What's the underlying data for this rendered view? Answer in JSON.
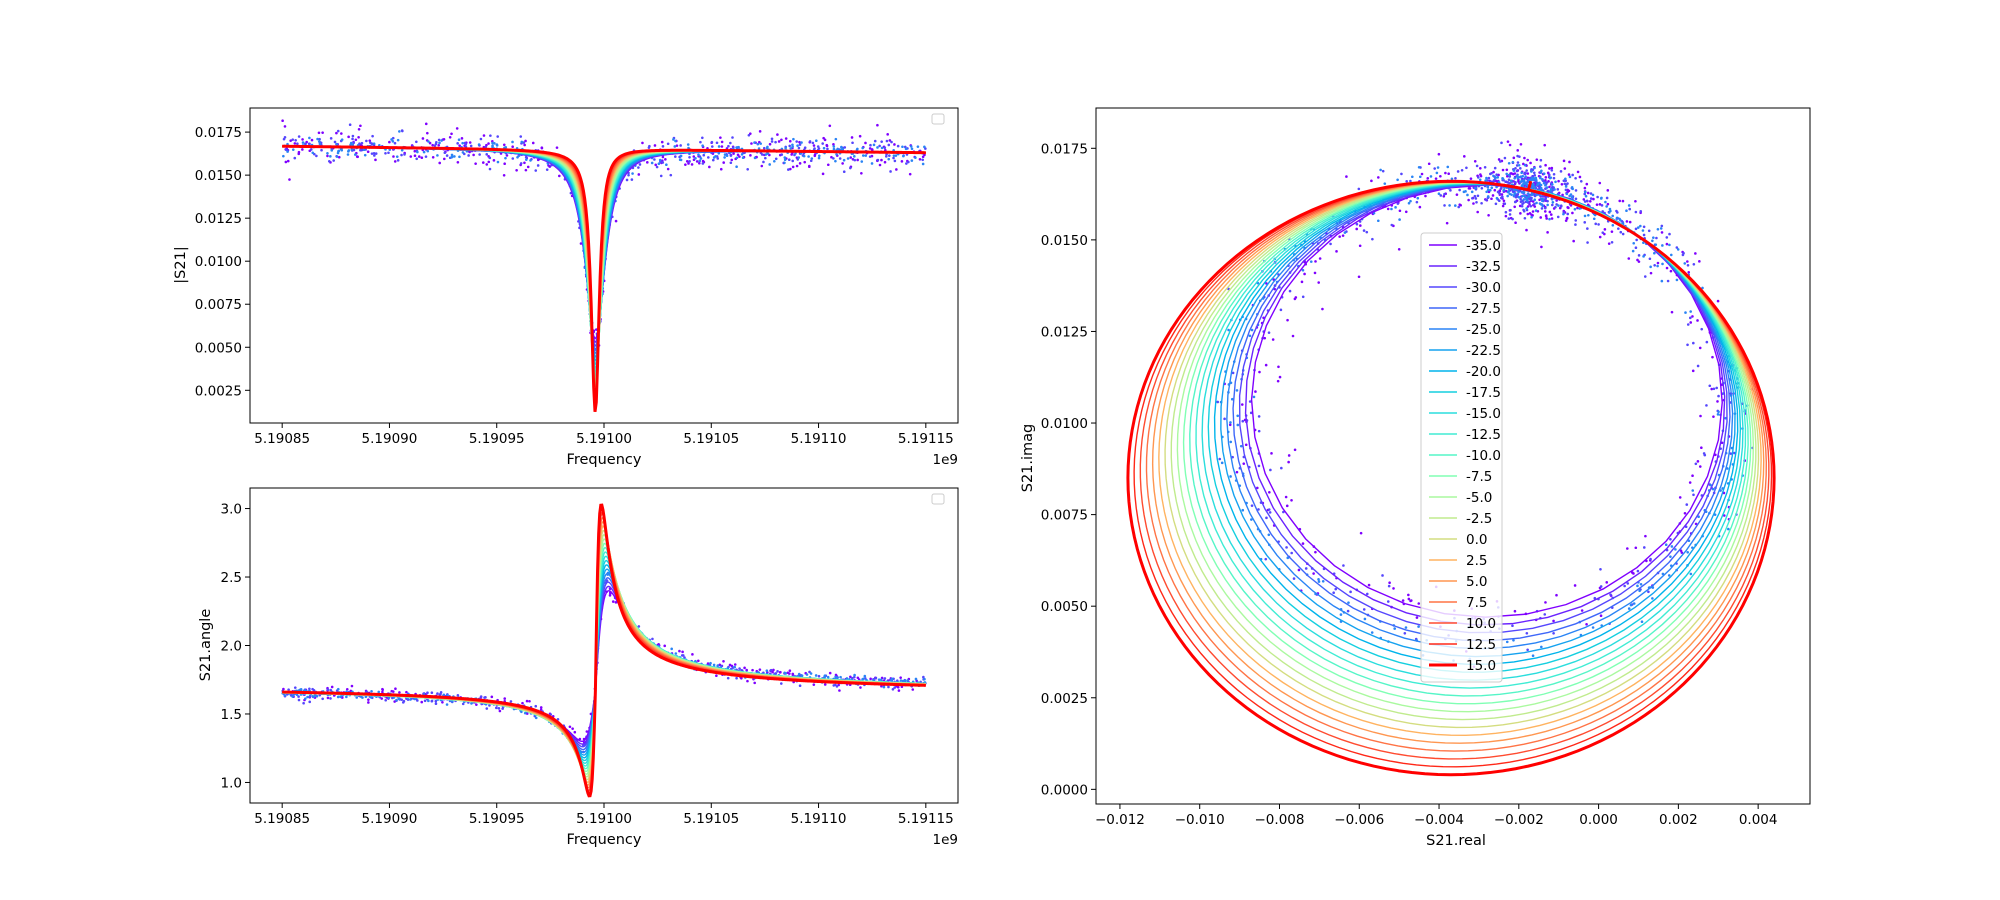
{
  "chart_data": [
    {
      "type": "line",
      "id": "mag",
      "xlabel": "Frequency",
      "ylabel": "|S21|",
      "x_offset_label": "1e9",
      "xlim": [
        5.190835,
        5.191165
      ],
      "ylim": [
        0.0006,
        0.0189
      ],
      "xticks": [
        5.19085,
        5.1909,
        5.19095,
        5.191,
        5.19105,
        5.1911,
        5.19115
      ],
      "xtick_labels": [
        "5.19085",
        "5.19090",
        "5.19095",
        "5.19100",
        "5.19105",
        "5.19110",
        "5.19115"
      ],
      "yticks": [
        0.0025,
        0.005,
        0.0075,
        0.01,
        0.0125,
        0.015,
        0.0175
      ],
      "ytick_labels": [
        "0.0025",
        "0.0050",
        "0.0075",
        "0.0100",
        "0.0125",
        "0.0150",
        "0.0175"
      ],
      "legend": "empty box, top-right",
      "series_style": "scatter points (noisy measurement) with fitted lines per power, colormap rainbow",
      "fit_model": {
        "x_range": [
          5.19085,
          5.19115
        ],
        "f0": 5.190996,
        "baseline": 0.0165,
        "dip_depth_range": [
          0.011,
          0.0153
        ],
        "fwhm_range": [
          4.5e-06,
          1.15e-05
        ]
      }
    },
    {
      "type": "line",
      "id": "phase",
      "xlabel": "Frequency",
      "ylabel": "S21.angle",
      "x_offset_label": "1e9",
      "xlim": [
        5.190835,
        5.191165
      ],
      "ylim": [
        0.85,
        3.15
      ],
      "xticks": [
        5.19085,
        5.1909,
        5.19095,
        5.191,
        5.19105,
        5.1911,
        5.19115
      ],
      "xtick_labels": [
        "5.19085",
        "5.19090",
        "5.19095",
        "5.19100",
        "5.19105",
        "5.19110",
        "5.19115"
      ],
      "yticks": [
        1.0,
        1.5,
        2.0,
        2.5,
        3.0
      ],
      "ytick_labels": [
        "1.0",
        "1.5",
        "2.0",
        "2.5",
        "3.0"
      ],
      "legend": "empty box, top-right",
      "fit_model": {
        "baseline_start": 1.69,
        "baseline_end": 1.66,
        "min_range": [
          1.3,
          0.9
        ],
        "max_range": [
          2.4,
          3.03
        ]
      }
    },
    {
      "type": "scatter",
      "id": "iq",
      "xlabel": "S21.real",
      "ylabel": "S21.imag",
      "xlim": [
        -0.0126,
        0.0053
      ],
      "ylim": [
        -0.0004,
        0.0186
      ],
      "xticks": [
        -0.012,
        -0.01,
        -0.008,
        -0.006,
        -0.004,
        -0.002,
        0.0,
        0.002,
        0.004
      ],
      "xtick_labels": [
        "−0.012",
        "−0.010",
        "−0.008",
        "−0.006",
        "−0.004",
        "−0.002",
        "0.000",
        "0.002",
        "0.004"
      ],
      "yticks": [
        0.0,
        0.0025,
        0.005,
        0.0075,
        0.01,
        0.0125,
        0.015,
        0.0175
      ],
      "ytick_labels": [
        "0.0000",
        "0.0025",
        "0.0050",
        "0.0075",
        "0.0100",
        "0.0125",
        "0.0150",
        "0.0175"
      ],
      "legend": "center, upper half",
      "circle_model": {
        "anchor": [
          -0.0017,
          0.0166
        ],
        "smallest_circle": {
          "left": -0.0087,
          "right": 0.0031,
          "bottom": 0.0047
        },
        "largest_circle": {
          "left": -0.0118,
          "right": 0.0044,
          "bottom": 0.0004
        }
      }
    }
  ],
  "legend_entries": [
    "-35.0",
    "-32.5",
    "-30.0",
    "-27.5",
    "-25.0",
    "-22.5",
    "-20.0",
    "-17.5",
    "-15.0",
    "-12.5",
    "-10.0",
    "-7.5",
    "-5.0",
    "-2.5",
    "0.0",
    "2.5",
    "5.0",
    "7.5",
    "10.0",
    "12.5",
    "15.0"
  ],
  "series_colors": [
    "#7f00ff",
    "#6a23fe",
    "#5546fd",
    "#3f67f9",
    "#2a84f5",
    "#15a2ef",
    "#00b4eb",
    "#15cfdf",
    "#2adddd",
    "#40ecd4",
    "#55f5c7",
    "#80ffb4",
    "#aaf99f",
    "#c0eb8d",
    "#d4dd80",
    "#ffb360",
    "#ff9650",
    "#ff7345",
    "#ff4b30",
    "#ff2818",
    "#ff0000"
  ]
}
